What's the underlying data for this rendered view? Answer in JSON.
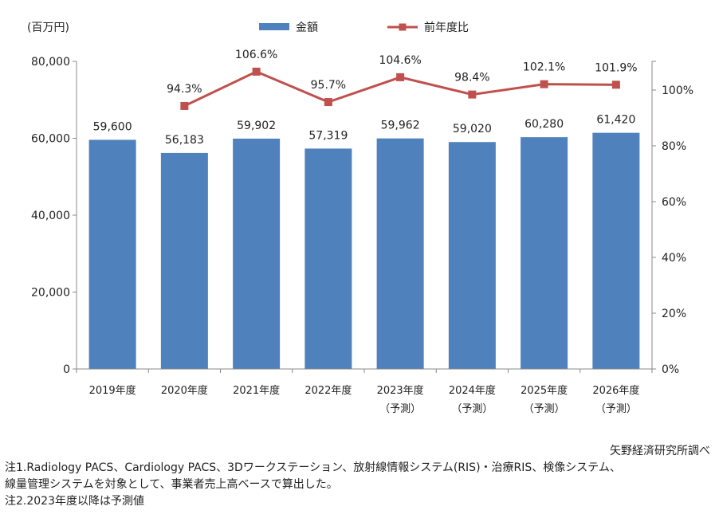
{
  "chart_data": {
    "type": "bar+line",
    "unit_label": "(百万円)",
    "legend": [
      {
        "name": "金額",
        "color": "#4f81bd",
        "kind": "bar"
      },
      {
        "name": "前年度比",
        "color": "#c0504d",
        "kind": "line"
      }
    ],
    "categories": [
      [
        "2019年度"
      ],
      [
        "2020年度"
      ],
      [
        "2021年度"
      ],
      [
        "2022年度"
      ],
      [
        "2023年度",
        "（予測）"
      ],
      [
        "2024年度",
        "（予測）"
      ],
      [
        "2025年度",
        "（予測）"
      ],
      [
        "2026年度",
        "（予測）"
      ]
    ],
    "series": [
      {
        "name": "金額",
        "axis": "left",
        "values": [
          59600,
          56183,
          59902,
          57319,
          59962,
          59020,
          60280,
          61420
        ],
        "labels": [
          "59,600",
          "56,183",
          "59,902",
          "57,319",
          "59,962",
          "59,020",
          "60,280",
          "61,420"
        ]
      },
      {
        "name": "前年度比",
        "axis": "right",
        "values": [
          null,
          94.3,
          106.6,
          95.7,
          104.6,
          98.4,
          102.1,
          101.9
        ],
        "labels": [
          "",
          "94.3%",
          "106.6%",
          "95.7%",
          "104.6%",
          "98.4%",
          "102.1%",
          "101.9%"
        ]
      }
    ],
    "y_left": {
      "min": 0,
      "max": 80000,
      "ticks": [
        "0",
        "20,000",
        "40,000",
        "60,000",
        "80,000"
      ]
    },
    "y_right": {
      "min": 0,
      "max": 110,
      "ticks": [
        "0%",
        "20%",
        "40%",
        "60%",
        "80%",
        "100%"
      ]
    },
    "legend_position": "top",
    "grid": false
  },
  "notes": {
    "source": "矢野経済研究所調べ",
    "note1a": "注1.Radiology PACS、Cardiology PACS、3Dワークステーション、放射線情報システム(RIS)・治療RIS、検像システム、",
    "note1b": "線量管理システムを対象として、事業者売上高ベースで算出した。",
    "note2": "注2.2023年度以降は予測値"
  }
}
